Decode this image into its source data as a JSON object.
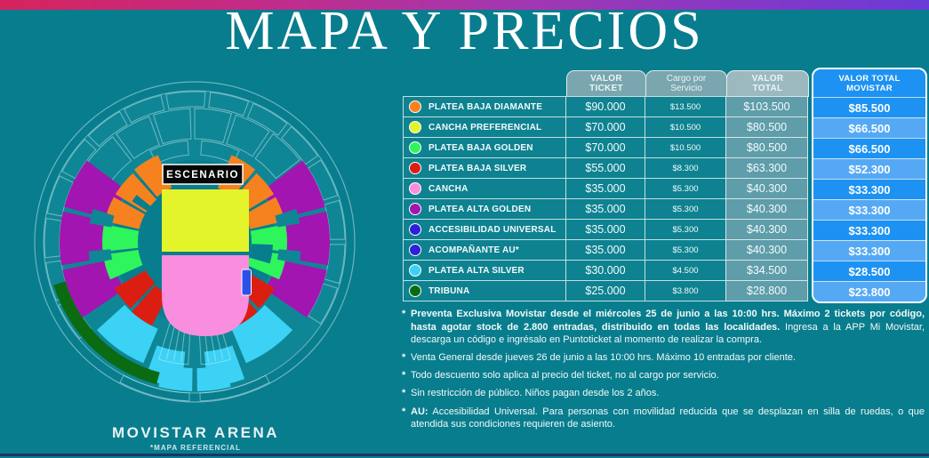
{
  "title": "MAPA Y PRECIOS",
  "map": {
    "stage_label": "ESCENARIO",
    "venue_name": "MOVISTAR ARENA",
    "disclaimer": "*MAPA REFERENCIAL",
    "accessibility_block_color": "#2B50E8"
  },
  "table": {
    "headers": {
      "ticket": [
        "VALOR",
        "TICKET"
      ],
      "cargo": [
        "Cargo por",
        "Servicio"
      ],
      "total": [
        "VALOR",
        "TOTAL"
      ],
      "movistar": [
        "VALOR TOTAL",
        "MOVISTAR"
      ]
    }
  },
  "categories": [
    {
      "key": "platea-baja-diamante",
      "label": "PLATEA BAJA DIAMANTE",
      "color": "#F5821F",
      "ticket": "$90.000",
      "cargo": "$13.500",
      "total": "$103.500",
      "movistar": "$85.500"
    },
    {
      "key": "cancha-preferencial",
      "label": "CANCHA PREFERENCIAL",
      "color": "#E3F52A",
      "ticket": "$70.000",
      "cargo": "$10.500",
      "total": "$80.500",
      "movistar": "$66.500"
    },
    {
      "key": "platea-baja-golden",
      "label": "PLATEA BAJA GOLDEN",
      "color": "#2EF55C",
      "ticket": "$70.000",
      "cargo": "$10.500",
      "total": "$80.500",
      "movistar": "$66.500"
    },
    {
      "key": "platea-baja-silver",
      "label": "PLATEA BAJA SILVER",
      "color": "#DC1E12",
      "ticket": "$55.000",
      "cargo": "$8.300",
      "total": "$63.300",
      "movistar": "$52.300"
    },
    {
      "key": "cancha",
      "label": "CANCHA",
      "color": "#FA8EDE",
      "ticket": "$35.000",
      "cargo": "$5.300",
      "total": "$40.300",
      "movistar": "$33.300"
    },
    {
      "key": "platea-alta-golden",
      "label": "PLATEA ALTA GOLDEN",
      "color": "#A315B0",
      "ticket": "$35.000",
      "cargo": "$5.300",
      "total": "$40.300",
      "movistar": "$33.300"
    },
    {
      "key": "accesibilidad-universal",
      "label": "ACCESIBILIDAD UNIVERSAL",
      "color": "#2B22D8",
      "ticket": "$35.000",
      "cargo": "$5.300",
      "total": "$40.300",
      "movistar": "$33.300"
    },
    {
      "key": "acompanante-au",
      "label": "ACOMPAÑANTE AU*",
      "color": "#2B22D8",
      "ticket": "$35.000",
      "cargo": "$5.300",
      "total": "$40.300",
      "movistar": "$33.300"
    },
    {
      "key": "platea-alta-silver",
      "label": "PLATEA ALTA SILVER",
      "color": "#3BD2F5",
      "ticket": "$30.000",
      "cargo": "$4.500",
      "total": "$34.500",
      "movistar": "$28.500"
    },
    {
      "key": "tribuna",
      "label": "TRIBUNA",
      "color": "#0A6B12",
      "ticket": "$25.000",
      "cargo": "$3.800",
      "total": "$28.800",
      "movistar": "$23.800"
    }
  ],
  "notes": [
    {
      "segments": [
        {
          "bold": true,
          "text": "Preventa Exclusiva Movistar desde el miércoles 25 de junio a las 10:00 hrs. Máximo 2 tickets por código, hasta agotar stock de 2.800 entradas, distribuido en todas las localidades."
        },
        {
          "bold": false,
          "text": " Ingresa a la APP Mi Movistar, descarga un código e ingrésalo en Puntoticket al momento de realizar la compra."
        }
      ]
    },
    {
      "segments": [
        {
          "bold": false,
          "text": "Venta General desde jueves 26 de junio a las 10:00 hrs. Máximo 10 entradas por cliente."
        }
      ]
    },
    {
      "segments": [
        {
          "bold": false,
          "text": "Todo descuento solo aplica al precio del ticket, no al cargo por servicio."
        }
      ]
    },
    {
      "segments": [
        {
          "bold": false,
          "text": "Sin restricción de público. Niños pagan desde los 2 años."
        }
      ]
    },
    {
      "segments": [
        {
          "bold": true,
          "text": "AU:"
        },
        {
          "bold": false,
          "text": " Accesibilidad Universal. Para personas con movilidad reducida que se desplazan en silla de ruedas, o que atendida sus condiciones requieren de asiento."
        }
      ]
    }
  ],
  "colors": {
    "background": "#087D8D",
    "ring_band": "#0F8695",
    "row_teal": "#0E8290",
    "total_cell": "#5E9DA9",
    "header_cell": "#7AA6AF",
    "total_header": "#9CB9BF",
    "movistar_blue": "#1D92F2",
    "movistar_blue_light": "#55A9F4",
    "topbar_left": "#D6235E",
    "topbar_right": "#6B3AD8"
  }
}
